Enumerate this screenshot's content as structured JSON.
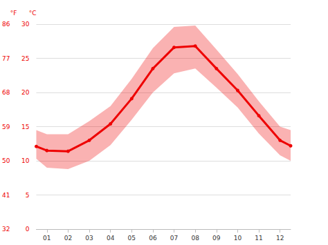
{
  "chart_data": {
    "type": "line",
    "x": [
      0.5,
      1,
      2,
      3,
      4,
      5,
      6,
      7,
      8,
      9,
      10,
      11,
      12,
      12.5
    ],
    "values": [
      12.1,
      11.5,
      11.4,
      13.0,
      15.4,
      19.1,
      23.5,
      26.6,
      26.8,
      23.5,
      20.3,
      16.6,
      13.0,
      12.2
    ],
    "low": [
      10.3,
      9.0,
      8.8,
      10.0,
      12.3,
      16.0,
      20.0,
      22.8,
      23.5,
      20.7,
      17.8,
      14.0,
      10.8,
      10.0
    ],
    "high": [
      14.5,
      13.9,
      13.9,
      15.8,
      18.0,
      22.0,
      26.5,
      29.6,
      29.8,
      26.3,
      22.7,
      18.7,
      15.0,
      14.5
    ],
    "color": "#ee0000",
    "marker": "circle",
    "xlim": [
      0.5,
      12.5
    ],
    "xticks": [
      {
        "value": 1,
        "label": "01"
      },
      {
        "value": 2,
        "label": "02"
      },
      {
        "value": 3,
        "label": "03"
      },
      {
        "value": 4,
        "label": "04"
      },
      {
        "value": 5,
        "label": "05"
      },
      {
        "value": 6,
        "label": "06"
      },
      {
        "value": 7,
        "label": "07"
      },
      {
        "value": 8,
        "label": "08"
      },
      {
        "value": 9,
        "label": "09"
      },
      {
        "value": 10,
        "label": "10"
      },
      {
        "value": 11,
        "label": "11"
      },
      {
        "value": 12,
        "label": "12"
      }
    ],
    "y_label": "°C",
    "ylim": [
      0,
      30
    ],
    "yticks": [
      0,
      5,
      10,
      15,
      20,
      25,
      30
    ],
    "y2_label": "°F",
    "y2lim": [
      32,
      86
    ],
    "y2ticks": [
      32,
      41,
      50,
      59,
      68,
      77,
      86
    ],
    "grid": true
  }
}
